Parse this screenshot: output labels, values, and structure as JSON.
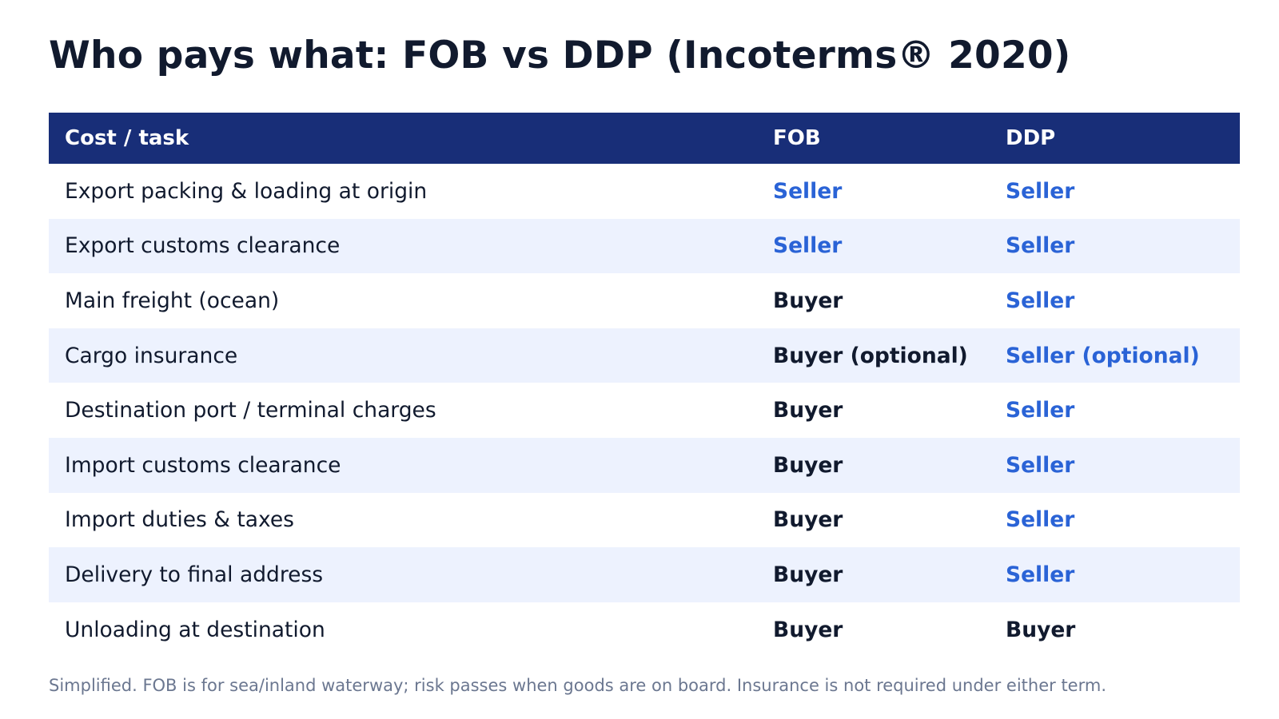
{
  "title": "Who pays what: FOB vs DDP (Incoterms® 2020)",
  "colors": {
    "header_bg": "#182e78",
    "seller": "#2a63d6",
    "buyer": "#111a2e",
    "alt_row_bg": "#edf2fe"
  },
  "table": {
    "headers": [
      "Cost / task",
      "FOB",
      "DDP"
    ],
    "rows": [
      {
        "task": "Export packing & loading at origin",
        "fob": "Seller",
        "ddp": "Seller"
      },
      {
        "task": "Export customs clearance",
        "fob": "Seller",
        "ddp": "Seller"
      },
      {
        "task": "Main freight (ocean)",
        "fob": "Buyer",
        "ddp": "Seller"
      },
      {
        "task": "Cargo insurance",
        "fob": "Buyer (optional)",
        "ddp": "Seller (optional)"
      },
      {
        "task": "Destination port / terminal charges",
        "fob": "Buyer",
        "ddp": "Seller"
      },
      {
        "task": "Import customs clearance",
        "fob": "Buyer",
        "ddp": "Seller"
      },
      {
        "task": "Import duties & taxes",
        "fob": "Buyer",
        "ddp": "Seller"
      },
      {
        "task": "Delivery to final address",
        "fob": "Buyer",
        "ddp": "Seller"
      },
      {
        "task": "Unloading at destination",
        "fob": "Buyer",
        "ddp": "Buyer"
      }
    ]
  },
  "footnote": "Simplified. FOB is for sea/inland waterway; risk passes when goods are on board. Insurance is not required under either term."
}
